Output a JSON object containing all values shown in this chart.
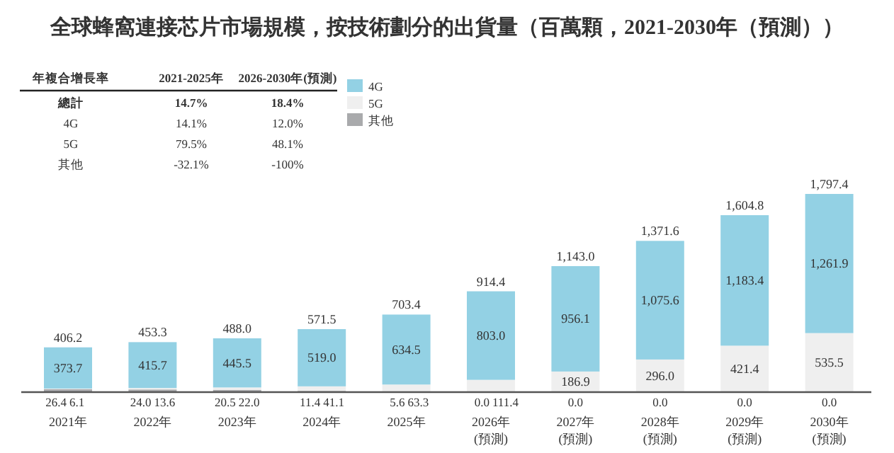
{
  "chart_data": {
    "type": "bar",
    "stacked": true,
    "title": "全球蜂窩連接芯片市場規模，按技術劃分的出貨量（百萬顆，2021-2030年（預測））",
    "categories": [
      "2021年",
      "2022年",
      "2023年",
      "2024年",
      "2025年",
      "2026年\n(預測)",
      "2027年\n(預測)",
      "2028年\n(預測)",
      "2029年\n(預測)",
      "2030年\n(預測)"
    ],
    "series": [
      {
        "name": "其他",
        "color": "#a9aaac",
        "values": [
          26.4,
          24.0,
          20.5,
          11.4,
          5.6,
          0.0,
          0.0,
          0.0,
          0.0,
          0.0
        ],
        "value_labels": [
          "26.4",
          "24.0",
          "20.5",
          "11.4",
          "5.6",
          "0.0",
          "0.0",
          "0.0",
          "0.0",
          "0.0"
        ]
      },
      {
        "name": "5G",
        "color": "#efefef",
        "values": [
          6.1,
          13.6,
          22.0,
          41.1,
          63.3,
          111.4,
          186.9,
          296.0,
          421.4,
          535.5
        ],
        "value_labels": [
          "6.1",
          "13.6",
          "22.0",
          "41.1",
          "63.3",
          "111.4",
          "186.9",
          "296.0",
          "421.4",
          "535.5"
        ]
      },
      {
        "name": "4G",
        "color": "#93d1e4",
        "values": [
          373.7,
          415.7,
          445.5,
          519.0,
          634.5,
          803.0,
          956.1,
          1075.6,
          1183.4,
          1261.9
        ],
        "value_labels": [
          "373.7",
          "415.7",
          "445.5",
          "519.0",
          "634.5",
          "803.0",
          "956.1",
          "1,075.6",
          "1,183.4",
          "1,261.9"
        ]
      }
    ],
    "totals": [
      "406.2",
      "453.3",
      "488.0",
      "571.5",
      "703.4",
      "914.4",
      "1,143.0",
      "1,371.6",
      "1,604.8",
      "1,797.4"
    ],
    "legend": "top",
    "annotations": [
      "年複合增長率",
      "2021-2025年",
      "2026-2030年(預測)",
      "總計",
      "14.7%",
      "18.4%",
      "4G",
      "14.1%",
      "12.0%",
      "5G",
      "79.5%",
      "48.1%",
      "其他",
      "-32.1%",
      "-100%"
    ]
  }
}
